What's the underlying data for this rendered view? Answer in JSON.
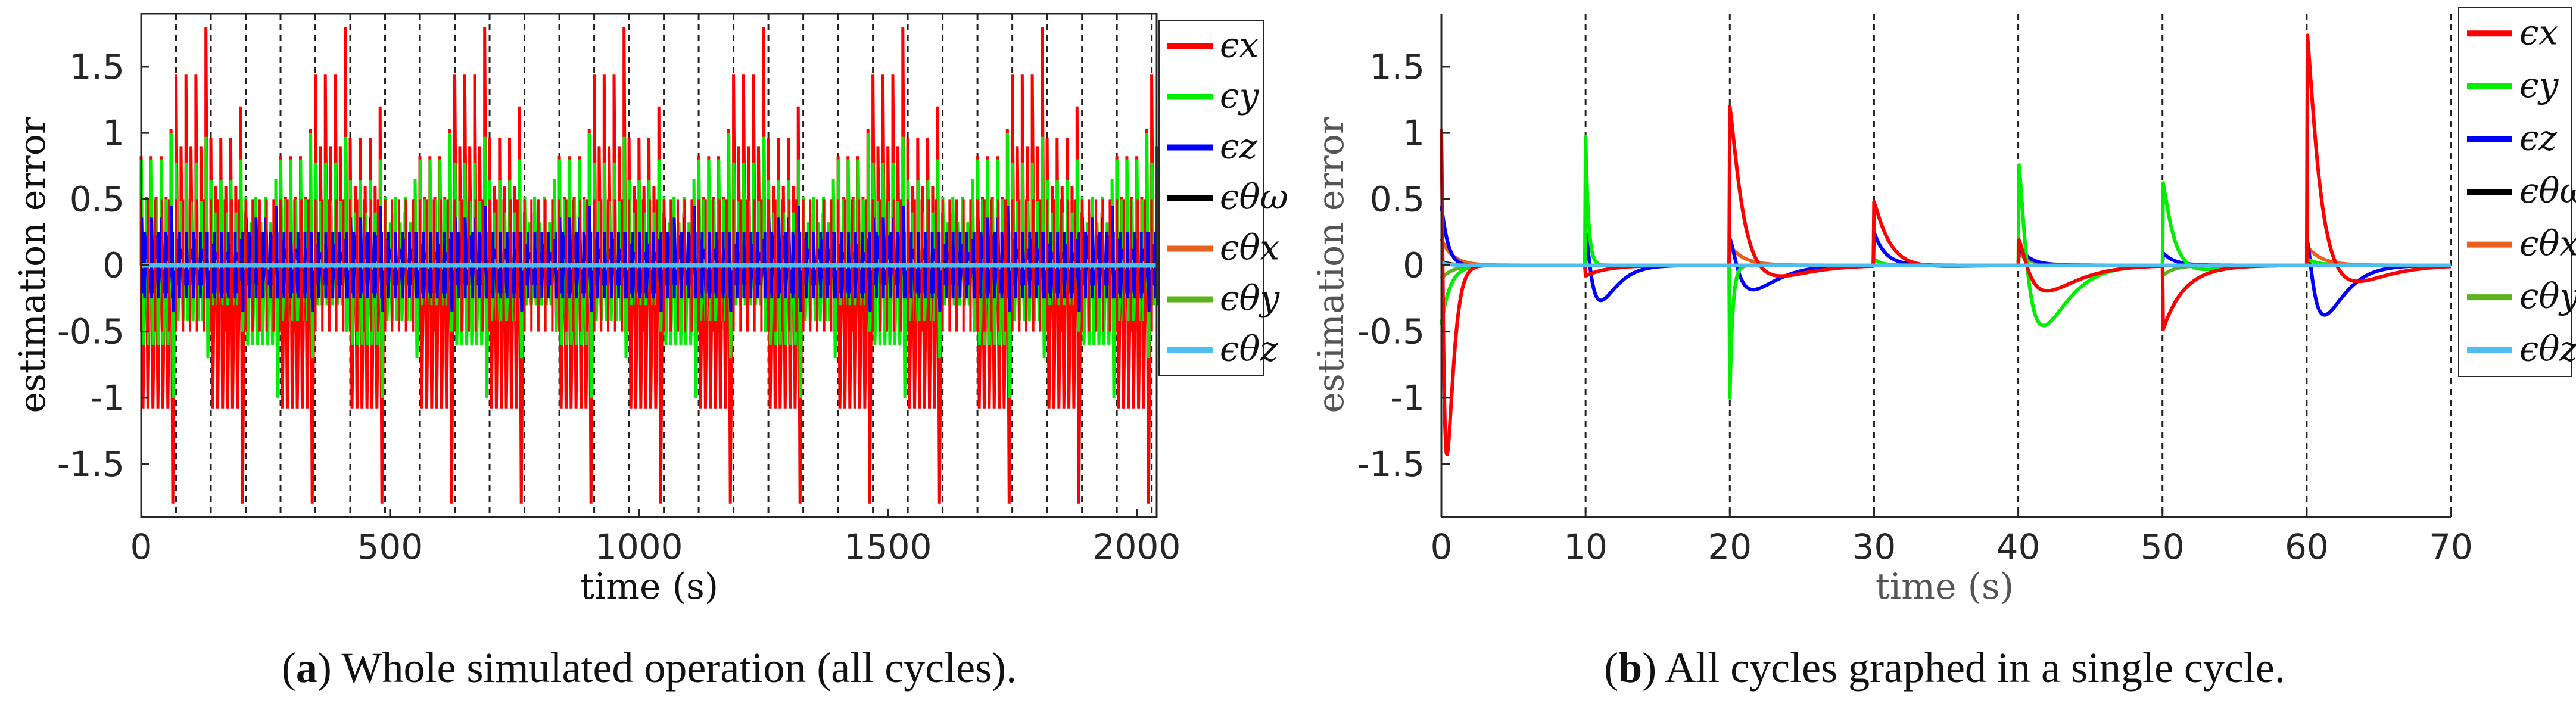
{
  "chart_data": [
    {
      "type": "line",
      "panel_label": "a",
      "caption": "Whole simulated operation (all cycles).",
      "xlabel": "time (s)",
      "ylabel": "estimation error",
      "xlim": [
        0,
        2040
      ],
      "ylim": [
        -1.9,
        1.9
      ],
      "x_ticks": [
        0,
        500,
        1000,
        1500,
        2000
      ],
      "x_tick_labels": [
        "0",
        "500",
        "1000",
        "1500",
        "2000"
      ],
      "y_ticks": [
        1.5,
        1,
        0.5,
        0,
        -0.5,
        -1,
        -1.5
      ],
      "y_tick_labels": [
        "1.5",
        "1",
        "0.5",
        "0",
        "-0.5",
        "-1",
        "-1.5"
      ],
      "grid": false,
      "legend_position": "right",
      "cycle_period_s": 70,
      "cycle_marker_times": [
        70,
        140,
        210,
        280,
        350,
        420,
        490,
        560,
        630,
        700,
        770,
        840,
        910,
        980,
        1050,
        1120,
        1190,
        1260,
        1330,
        1400,
        1470,
        1540,
        1610,
        1680,
        1750,
        1820,
        1890,
        1960,
        2030
      ],
      "series": [
        {
          "name": "ϵx",
          "color": "#ff0000",
          "peak_values": [
            1.03,
            1.8,
            1.2,
            0.5
          ],
          "trough_values": [
            -1.8,
            -0.5
          ]
        },
        {
          "name": "ϵy",
          "color": "#00ee00",
          "peak_values": [
            1.0,
            0.97,
            0.8,
            0.65
          ],
          "trough_values": [
            -1.0,
            -0.7,
            -0.5
          ]
        },
        {
          "name": "ϵz",
          "color": "#0000ff",
          "peak_values": [
            0.45,
            0.25,
            0.2
          ],
          "trough_values": [
            -0.35,
            -0.25
          ]
        },
        {
          "name": "ϵθω",
          "color": "#000000",
          "peak_values": [
            0.03
          ],
          "trough_values": [
            -0.03
          ]
        },
        {
          "name": "ϵθx",
          "color": "#e8601c",
          "peak_values": [
            0.2,
            0.15
          ],
          "trough_values": [
            -0.2
          ]
        },
        {
          "name": "ϵθy",
          "color": "#5cb31e",
          "peak_values": [
            0.1
          ],
          "trough_values": [
            -0.1
          ]
        },
        {
          "name": "ϵθz",
          "color": "#4dbeee",
          "peak_values": [
            0.02
          ],
          "trough_values": [
            -0.02
          ]
        }
      ]
    },
    {
      "type": "line",
      "panel_label": "b",
      "caption": "All cycles graphed in a single cycle.",
      "xlabel": "time (s)",
      "ylabel": "estimation error",
      "xlim": [
        0,
        70
      ],
      "ylim": [
        -1.9,
        1.9
      ],
      "x_ticks": [
        0,
        10,
        20,
        30,
        40,
        50,
        60,
        70
      ],
      "x_tick_labels": [
        "0",
        "10",
        "20",
        "30",
        "40",
        "50",
        "60",
        "70"
      ],
      "y_ticks": [
        1.5,
        1,
        0.5,
        0,
        -0.5,
        -1,
        -1.5
      ],
      "y_tick_labels": [
        "1.5",
        "1",
        "0.5",
        "0",
        "-0.5",
        "-1",
        "-1.5"
      ],
      "grid": false,
      "legend_position": "right",
      "cycle_marker_times": [
        10,
        20,
        30,
        40,
        50,
        60,
        70
      ],
      "series": [
        {
          "name": "ϵx",
          "color": "#ff0000",
          "events": [
            {
              "t": 0,
              "initial": 1.03,
              "min": -1.8,
              "tau": 0.3
            },
            {
              "t": 10,
              "initial": -0.08,
              "tau": 1.5
            },
            {
              "t": 20,
              "initial": 1.2,
              "min": -0.32,
              "tau": 1.5
            },
            {
              "t": 30,
              "initial": 0.48,
              "min": -0.07,
              "tau": 1.5
            },
            {
              "t": 40,
              "initial": 0.2,
              "min": -0.26,
              "tau": 1.5
            },
            {
              "t": 50,
              "initial": -0.5,
              "tau": 1.5
            },
            {
              "t": 60,
              "initial": 1.8,
              "min": -0.48,
              "tau": 1.5
            }
          ]
        },
        {
          "name": "ϵy",
          "color": "#00ee00",
          "events": [
            {
              "t": 0,
              "initial": -0.45,
              "tau": 0.6
            },
            {
              "t": 10,
              "initial": 0.97,
              "tau": 0.2
            },
            {
              "t": 20,
              "initial": -1.0,
              "tau": 0.2
            },
            {
              "t": 30,
              "initial": 0.05,
              "tau": 0.5
            },
            {
              "t": 40,
              "initial": 0.8,
              "min": -0.7,
              "tau": 1.2
            },
            {
              "t": 50,
              "initial": 0.65,
              "min": -0.15,
              "tau": 1.2
            },
            {
              "t": 60,
              "initial": 0.05,
              "tau": 0.8
            }
          ]
        },
        {
          "name": "ϵz",
          "color": "#0000ff",
          "events": [
            {
              "t": 0,
              "initial": 0.45,
              "min": -0.05,
              "tau": 0.6
            },
            {
              "t": 10,
              "initial": 0.25,
              "min": -0.35,
              "tau": 0.8
            },
            {
              "t": 20,
              "initial": 0.2,
              "min": -0.25,
              "tau": 1.2
            },
            {
              "t": 30,
              "initial": 0.25,
              "tau": 0.8
            },
            {
              "t": 40,
              "initial": 0.15,
              "tau": 0.8
            },
            {
              "t": 50,
              "initial": 0.1,
              "tau": 0.8
            },
            {
              "t": 60,
              "initial": 0.2,
              "min": -0.45,
              "tau": 1.0
            }
          ]
        },
        {
          "name": "ϵθω",
          "color": "#000000",
          "events": [
            {
              "t": 0,
              "initial": 0.03,
              "tau": 0.6
            }
          ]
        },
        {
          "name": "ϵθx",
          "color": "#e8601c",
          "events": [
            {
              "t": 0,
              "initial": 0.2,
              "tau": 0.8
            },
            {
              "t": 20,
              "initial": 0.15,
              "tau": 1.0
            },
            {
              "t": 40,
              "initial": 0.1,
              "tau": 1.0
            },
            {
              "t": 60,
              "initial": 0.15,
              "tau": 1.0
            }
          ]
        },
        {
          "name": "ϵθy",
          "color": "#5cb31e",
          "events": [
            {
              "t": 0,
              "initial": -0.1,
              "tau": 0.8
            },
            {
              "t": 40,
              "initial": 0.1,
              "tau": 0.8
            },
            {
              "t": 50,
              "initial": -0.08,
              "tau": 0.8
            }
          ]
        },
        {
          "name": "ϵθz",
          "color": "#4dbeee",
          "events": [
            {
              "t": 0,
              "initial": 0.02,
              "tau": 0.5
            }
          ]
        }
      ]
    }
  ]
}
